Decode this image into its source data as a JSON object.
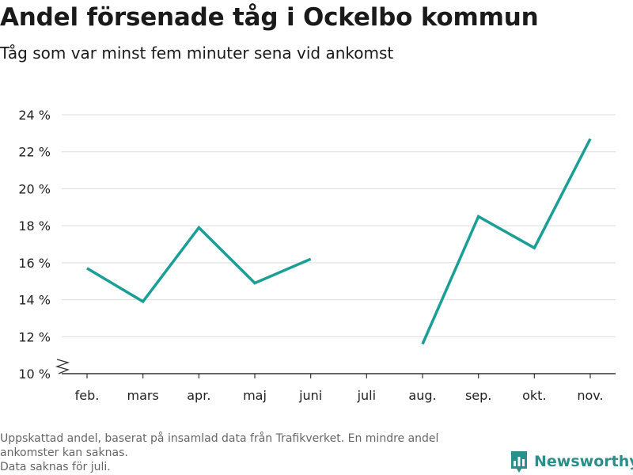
{
  "title": "Andel försenade tåg i Ockelbo kommun",
  "subtitle": "Tåg som var minst fem minuter sena vid ankomst",
  "footer": {
    "line1": "Uppskattad andel, baserat på insamlad data från Trafikverket. En mindre andel ankomster kan saknas.",
    "line2": "Data saknas för juli."
  },
  "brand": {
    "name": "Newsworthy",
    "icon": "newsworthy-logo-icon",
    "color": "#2a8f8a"
  },
  "chart_data": {
    "type": "line",
    "categories": [
      "feb.",
      "mars",
      "apr.",
      "maj",
      "juni",
      "juli",
      "aug.",
      "sep.",
      "okt.",
      "nov."
    ],
    "series": [
      {
        "color": "#1a9e96",
        "values": [
          15.7,
          13.9,
          17.9,
          14.9,
          16.2,
          null,
          11.6,
          18.5,
          16.8,
          22.7
        ]
      }
    ],
    "ylim": [
      10,
      24
    ],
    "yticks": [
      10,
      12,
      14,
      16,
      18,
      20,
      22,
      24
    ],
    "ytick_suffix": " %",
    "y_axis_break": true,
    "grid": true,
    "xlabel": "",
    "ylabel": ""
  }
}
